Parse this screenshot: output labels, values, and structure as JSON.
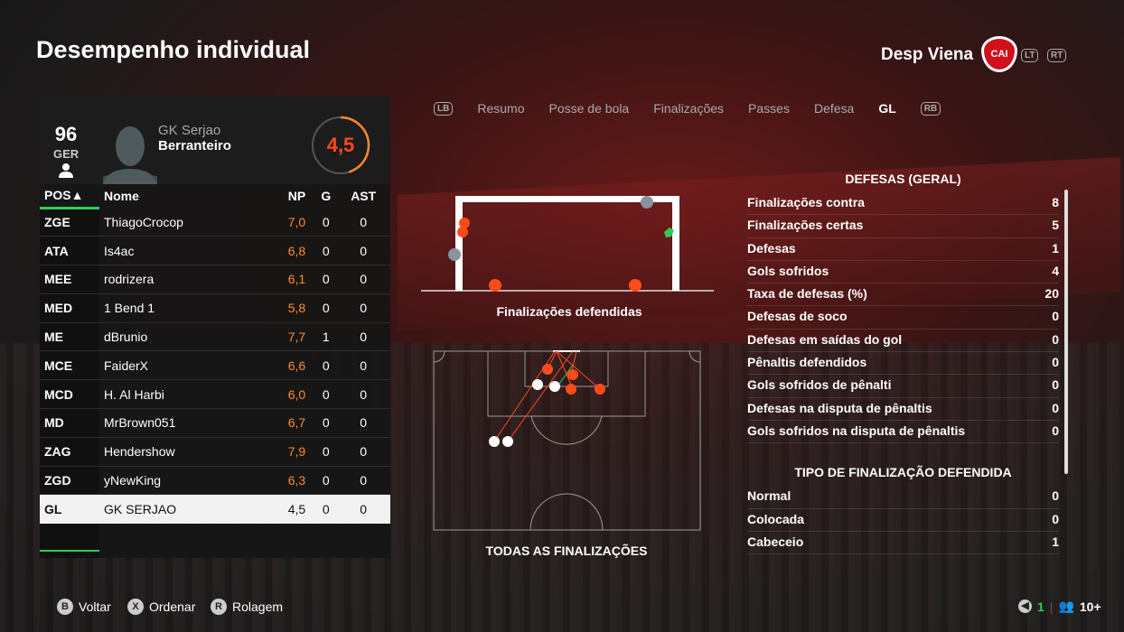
{
  "header": {
    "title": "Desempenho individual",
    "team": "Desp Viena",
    "crest_text": "CAI",
    "lt": "LT",
    "rt": "RT"
  },
  "player": {
    "ovr": "96",
    "ovr_label": "GER",
    "first_name": "GK Serjao",
    "last_name": "Berranteiro",
    "rating": "4,5",
    "rating_fraction": 0.45
  },
  "table": {
    "headers": [
      "POS▲",
      "Nome",
      "NP",
      "G",
      "AST"
    ],
    "rows": [
      [
        "ZGE",
        "ThiagoCrocop",
        "7,0",
        "0",
        "0"
      ],
      [
        "ATA",
        "Is4ac",
        "6,8",
        "0",
        "0"
      ],
      [
        "MEE",
        "rodrizera",
        "6,1",
        "0",
        "0"
      ],
      [
        "MED",
        "1 Bend 1",
        "5,8",
        "0",
        "0"
      ],
      [
        "ME",
        "dBrunio",
        "7,7",
        "1",
        "0"
      ],
      [
        "MCE",
        "FaiderX",
        "6,6",
        "0",
        "0"
      ],
      [
        "MCD",
        "H. Al Harbi",
        "6,0",
        "0",
        "0"
      ],
      [
        "MD",
        "MrBrown051",
        "6,7",
        "0",
        "0"
      ],
      [
        "ZAG",
        "Hendershow",
        "7,9",
        "0",
        "0"
      ],
      [
        "ZGD",
        "yNewKing",
        "6,3",
        "0",
        "0"
      ],
      [
        "GL",
        "GK SERJAO",
        "4,5",
        "0",
        "0"
      ]
    ]
  },
  "tabs": {
    "lb": "LB",
    "rb": "RB",
    "items": [
      "Resumo",
      "Posse de bola",
      "Finalizações",
      "Passes",
      "Defesa",
      "GL"
    ],
    "active": 5
  },
  "goal_label": "Finalizações defendidas",
  "pitch_label": "TODAS AS FINALIZAÇÕES",
  "stats": {
    "title1": "DEFESAS (GERAL)",
    "rows1": [
      [
        "Finalizações contra",
        "8"
      ],
      [
        "Finalizações certas",
        "5"
      ],
      [
        "Defesas",
        "1"
      ],
      [
        "Gols sofridos",
        "4"
      ],
      [
        "Taxa de defesas (%)",
        "20"
      ],
      [
        "Defesas de soco",
        "0"
      ],
      [
        "Defesas em saídas do gol",
        "0"
      ],
      [
        "Pênaltis defendidos",
        "0"
      ],
      [
        "Gols sofridos de pênalti",
        "0"
      ],
      [
        "Defesas na disputa de pênaltis",
        "0"
      ],
      [
        "Gols sofridos na disputa de pênaltis",
        "0"
      ]
    ],
    "title2": "TIPO DE FINALIZAÇÃO DEFENDIDA",
    "rows2": [
      [
        "Normal",
        "0"
      ],
      [
        "Colocada",
        "0"
      ],
      [
        "Cabeceio",
        "1"
      ]
    ]
  },
  "footer": {
    "back": "Voltar",
    "sort": "Ordenar",
    "scroll": "Rolagem",
    "b": "B",
    "x": "X",
    "r": "R",
    "count": "1",
    "players": "10+"
  },
  "colors": {
    "accent": "#2ecc57",
    "goal": "#ff4a1a",
    "rating": "#ff8a2a"
  }
}
